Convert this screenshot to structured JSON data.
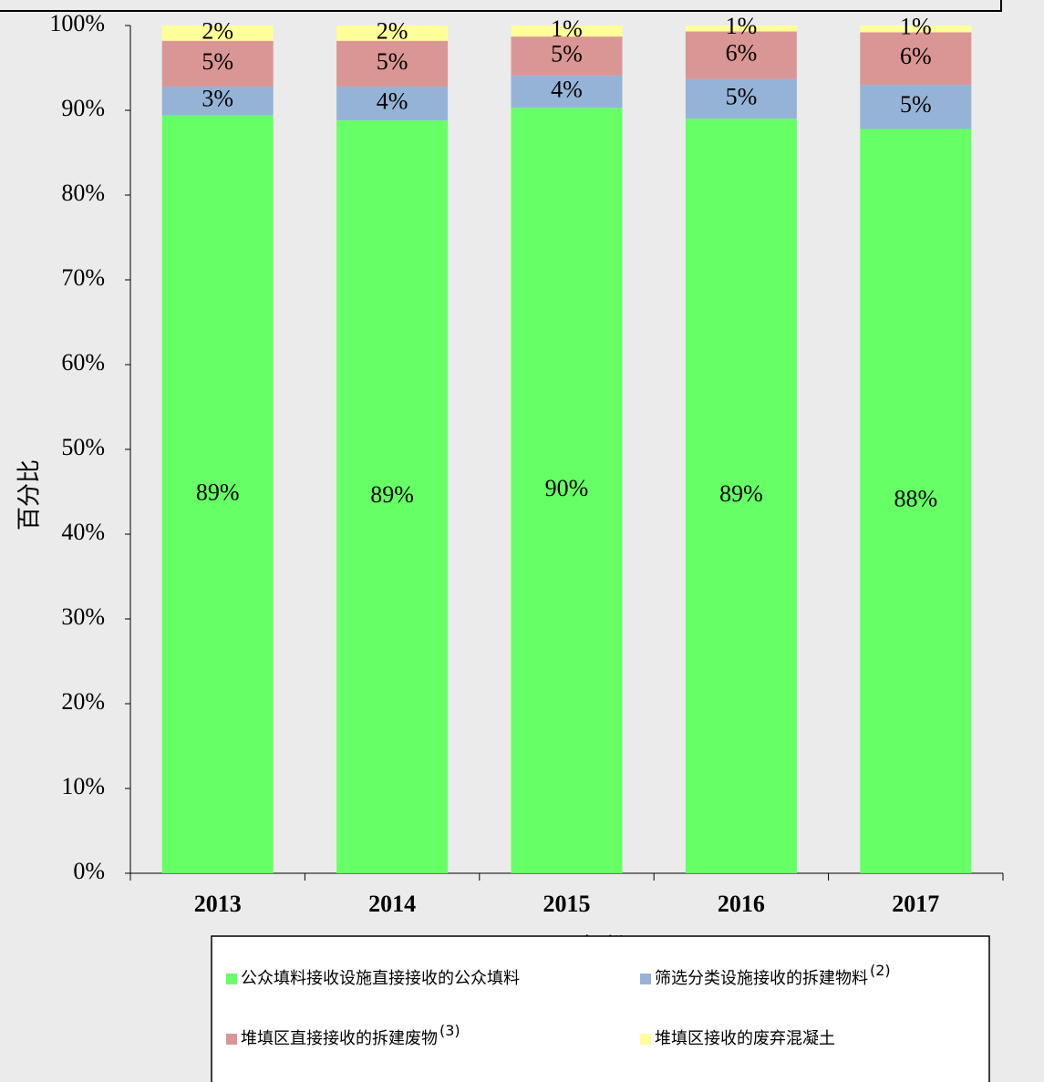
{
  "chart_data": {
    "type": "bar",
    "stacked": true,
    "x_label": "年份",
    "y_label": "百分比",
    "categories": [
      "2013",
      "2014",
      "2015",
      "2016",
      "2017"
    ],
    "series": [
      {
        "name": "公众填料接收设施直接接收的公众填料",
        "color": "#66ff66",
        "values": [
          89.4,
          88.8,
          90.3,
          89.0,
          87.8
        ],
        "value_labels": [
          "89%",
          "89%",
          "90%",
          "89%",
          "88%"
        ]
      },
      {
        "name": "筛选分类设施接收的拆建物料",
        "note": "(2)",
        "color": "#95b3d7",
        "values": [
          3.4,
          4.0,
          3.8,
          4.7,
          5.2
        ],
        "value_labels": [
          "3%",
          "4%",
          "4%",
          "5%",
          "5%"
        ]
      },
      {
        "name": "堆填区直接接收的拆建废物",
        "note": "(3)",
        "color": "#da9694",
        "values": [
          5.4,
          5.4,
          4.6,
          5.6,
          6.2
        ],
        "value_labels": [
          "5%",
          "5%",
          "5%",
          "6%",
          "6%"
        ]
      },
      {
        "name": "堆填区接收的废弃混凝土",
        "color": "#ffff99",
        "values": [
          1.8,
          1.8,
          1.3,
          0.7,
          0.8
        ],
        "value_labels": [
          "2%",
          "2%",
          "1%",
          "1%",
          "1%"
        ]
      }
    ],
    "ylim": [
      0,
      100
    ],
    "yticks": [
      {
        "value": 0,
        "label": "0%"
      },
      {
        "value": 10,
        "label": "10%"
      },
      {
        "value": 20,
        "label": "20%"
      },
      {
        "value": 30,
        "label": "30%"
      },
      {
        "value": 40,
        "label": "40%"
      },
      {
        "value": 50,
        "label": "50%"
      },
      {
        "value": 60,
        "label": "60%"
      },
      {
        "value": 70,
        "label": "70%"
      },
      {
        "value": 80,
        "label": "80%"
      },
      {
        "value": 90,
        "label": "90%"
      },
      {
        "value": 100,
        "label": "100%"
      }
    ]
  }
}
